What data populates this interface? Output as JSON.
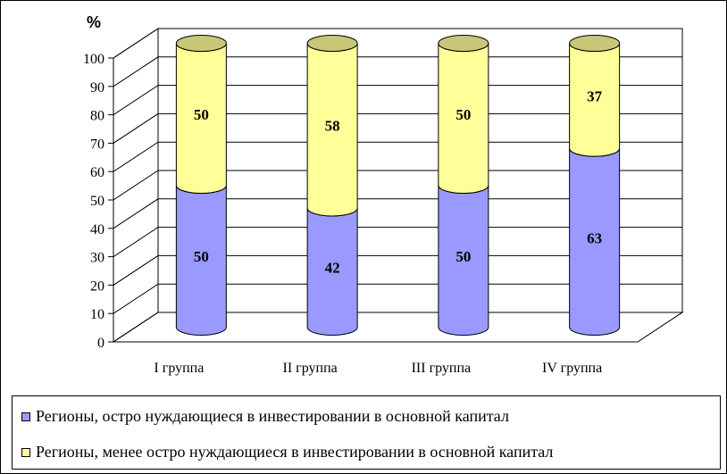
{
  "chart_data": {
    "type": "bar",
    "stacked": true,
    "style": "3d-cylinder",
    "unit_label": "%",
    "categories": [
      "I группа",
      "II группа",
      "III группа",
      "IV группа"
    ],
    "series": [
      {
        "name": "Регионы, остро нуждающиеся в инвестировании в основной капитал",
        "values": [
          50,
          42,
          50,
          63
        ],
        "color": "#9999FF"
      },
      {
        "name": "Регионы, менее остро нуждающиеся в инвестировании в основной капитал",
        "values": [
          50,
          58,
          50,
          37
        ],
        "color": "#FFFF99"
      }
    ],
    "ylim": [
      0,
      100
    ],
    "yticks": [
      0,
      10,
      20,
      30,
      40,
      50,
      60,
      70,
      80,
      90,
      100
    ],
    "grid": true,
    "legend_position": "bottom"
  }
}
